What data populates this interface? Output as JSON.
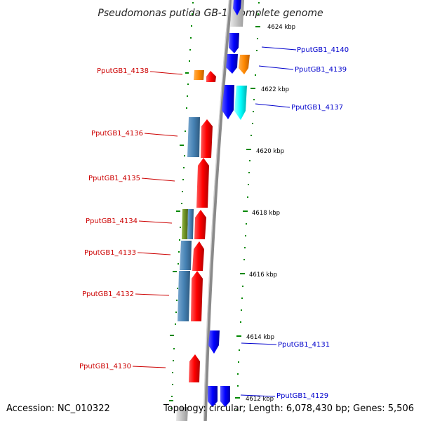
{
  "title": "Pseudomonas putida GB-1, complete genome",
  "accession": "Accession: NC_010322",
  "topology": "Topology: circular; Length: 6,078,430 bp; Genes: 5,506",
  "kbp_ticks": [
    "4624 kbp",
    "4622 kbp",
    "4620 kbp",
    "4618 kbp",
    "4616 kbp",
    "4614 kbp",
    "4612 kbp"
  ],
  "left_genes": [
    "PputGB1_4138",
    "PputGB1_4136",
    "PputGB1_4135",
    "PputGB1_4134",
    "PputGB1_4133",
    "PputGB1_4132",
    "PputGB1_4130"
  ],
  "right_genes": [
    "PputGB1_4140",
    "PputGB1_4139",
    "PputGB1_4137",
    "PputGB1_4131",
    "PputGB1_4129"
  ],
  "colors": {
    "forward_label": "#cc0000",
    "reverse_label": "#0000cc",
    "forward_gene": "#ff0000",
    "reverse_gene": "#0000ff",
    "orange_gene": "#ff8800",
    "cyan_gene": "#00ffff",
    "steelblue_gene": "#4682b4",
    "olive_gene": "#6b8e23",
    "tick_dot": "#008800",
    "backbone": "#888888"
  }
}
